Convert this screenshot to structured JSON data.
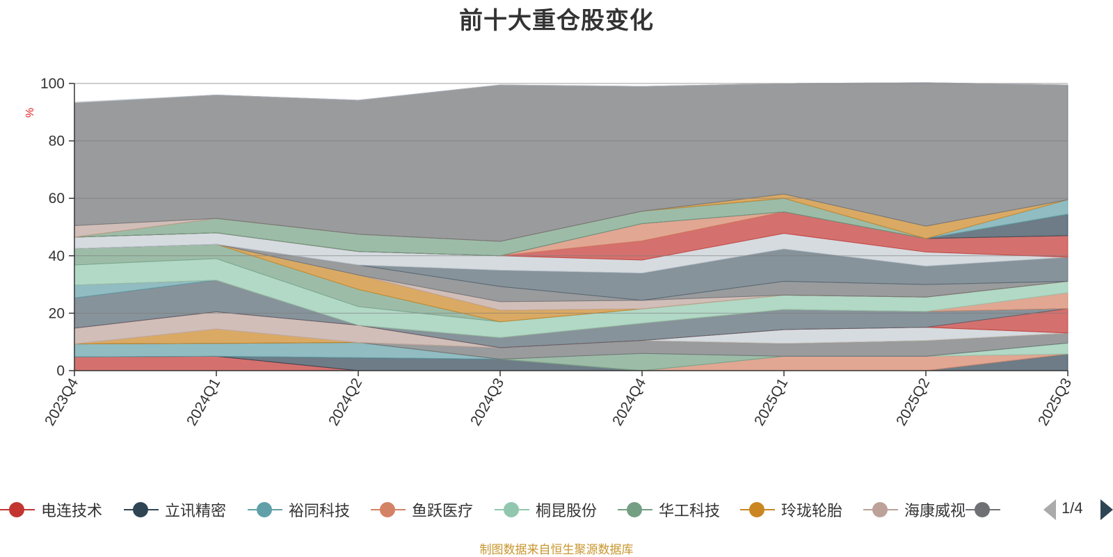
{
  "title": "前十大重仓股变化",
  "source_note": "制图数据来自恒生聚源数据库",
  "pager": {
    "text": "1/4"
  },
  "chart_data": {
    "type": "area",
    "stacked": true,
    "title": "前十大重仓股变化",
    "ylabel": "%",
    "ylim": [
      0,
      100
    ],
    "y_ticks": [
      0,
      20,
      40,
      60,
      80,
      100
    ],
    "categories": [
      "2023Q4",
      "2024Q1",
      "2024Q2",
      "2024Q3",
      "2024Q4",
      "2025Q1",
      "2025Q2",
      "2025Q3"
    ],
    "legend_position": "bottom",
    "legend": [
      {
        "name": "电连技术",
        "color": "#c23531"
      },
      {
        "name": "立讯精密",
        "color": "#2f4554"
      },
      {
        "name": "裕同科技",
        "color": "#61a0a8"
      },
      {
        "name": "鱼跃医疗",
        "color": "#d48265"
      },
      {
        "name": "桐昆股份",
        "color": "#91c7ae"
      },
      {
        "name": "华工科技",
        "color": "#749f83"
      },
      {
        "name": "玲珑轮胎",
        "color": "#ca8622"
      },
      {
        "name": "海康威视",
        "color": "#bda29a"
      },
      {
        "name": "",
        "color": "#6e7074"
      }
    ],
    "layers": [
      {
        "color": "#c23531",
        "values": [
          4.8,
          5.0,
          0,
          0,
          0,
          0,
          0,
          0
        ]
      },
      {
        "color": "#2f4554",
        "values": [
          0,
          0,
          4.5,
          4.0,
          0,
          0,
          0,
          5.8
        ]
      },
      {
        "color": "#61a0a8",
        "values": [
          4.5,
          4.5,
          5.3,
          0,
          0,
          0,
          0,
          0
        ]
      },
      {
        "color": "#d48265",
        "values": [
          0,
          0,
          0,
          0,
          0,
          5.0,
          5.0,
          0
        ]
      },
      {
        "color": "#91c7ae",
        "values": [
          0,
          0,
          0,
          0,
          0,
          0,
          0,
          3.8
        ]
      },
      {
        "color": "#749f83",
        "values": [
          0,
          0,
          0,
          0,
          6.0,
          0,
          0,
          0
        ]
      },
      {
        "color": "#6e7074",
        "values": [
          0,
          0,
          0,
          4.0,
          4.5,
          4.5,
          5.5,
          3.5
        ]
      },
      {
        "color": "#ca8622",
        "values": [
          0,
          5.0,
          0,
          0,
          0,
          0,
          0,
          0
        ]
      },
      {
        "color": "#c4ccd3",
        "values": [
          0,
          0,
          0,
          0,
          0,
          4.8,
          4.6,
          0
        ]
      },
      {
        "color": "#bda29a",
        "values": [
          5.5,
          6.0,
          6.0,
          0,
          0,
          0,
          0,
          0
        ]
      },
      {
        "color": "#c23531",
        "values": [
          0,
          0,
          0,
          0,
          0,
          0,
          0,
          8.5
        ]
      },
      {
        "color": "#546570",
        "values": [
          10.5,
          11.0,
          0,
          3.5,
          6.0,
          7.0,
          5.5,
          0
        ]
      },
      {
        "color": "#61a0a8",
        "values": [
          4.5,
          0,
          0,
          0,
          0,
          0,
          0,
          0
        ]
      },
      {
        "color": "#d48265",
        "values": [
          0,
          0,
          0,
          0,
          0,
          0,
          0,
          5.5
        ]
      },
      {
        "color": "#91c7ae",
        "values": [
          7.0,
          7.5,
          6.5,
          5.5,
          5.0,
          5.0,
          5.0,
          4.0
        ]
      },
      {
        "color": "#749f83",
        "values": [
          5.7,
          5.0,
          6.0,
          0,
          0,
          0,
          0,
          0
        ]
      },
      {
        "color": "#ca8622",
        "values": [
          0,
          0,
          5.0,
          4.0,
          0,
          0,
          0,
          0
        ]
      },
      {
        "color": "#bda29a",
        "values": [
          0,
          0,
          0,
          3.0,
          3.0,
          0,
          0,
          0
        ]
      },
      {
        "color": "#6e7074",
        "values": [
          0,
          0,
          3.5,
          5.3,
          0,
          4.8,
          4.4,
          0
        ]
      },
      {
        "color": "#546570",
        "values": [
          0,
          0,
          0,
          5.7,
          9.5,
          11.3,
          6.4,
          8.4
        ]
      },
      {
        "color": "#c4ccd3",
        "values": [
          4.0,
          4.0,
          4.7,
          5.0,
          4.5,
          5.4,
          4.9,
          0
        ]
      },
      {
        "color": "#c23531",
        "values": [
          0,
          0,
          0,
          0,
          6.7,
          7.5,
          4.7,
          7.5
        ]
      },
      {
        "color": "#d48265",
        "values": [
          0,
          0,
          0,
          0,
          6.0,
          0,
          0,
          0
        ]
      },
      {
        "color": "#2f4554",
        "values": [
          0,
          0,
          0,
          0,
          0,
          0,
          0,
          7.5
        ]
      },
      {
        "color": "#749f83",
        "values": [
          0,
          5.0,
          6.0,
          5.0,
          4.3,
          4.7,
          0,
          0
        ]
      },
      {
        "color": "#61a0a8",
        "values": [
          0,
          0,
          0,
          0,
          0,
          0,
          0,
          5.0
        ]
      },
      {
        "color": "#ca8622",
        "values": [
          0,
          0,
          0,
          0,
          0,
          1.5,
          4.3,
          0
        ]
      },
      {
        "color": "#bda29a",
        "values": [
          4.0,
          0,
          0,
          0,
          0,
          0,
          0,
          0
        ]
      },
      {
        "color": "#6e7074",
        "values": [
          42.8,
          43.0,
          46.7,
          54.5,
          43.5,
          38.5,
          50.0,
          40.0
        ]
      },
      {
        "color": "#c4ccd3",
        "values": [
          0.2,
          0,
          0,
          0,
          0,
          0,
          0,
          0
        ]
      }
    ]
  }
}
